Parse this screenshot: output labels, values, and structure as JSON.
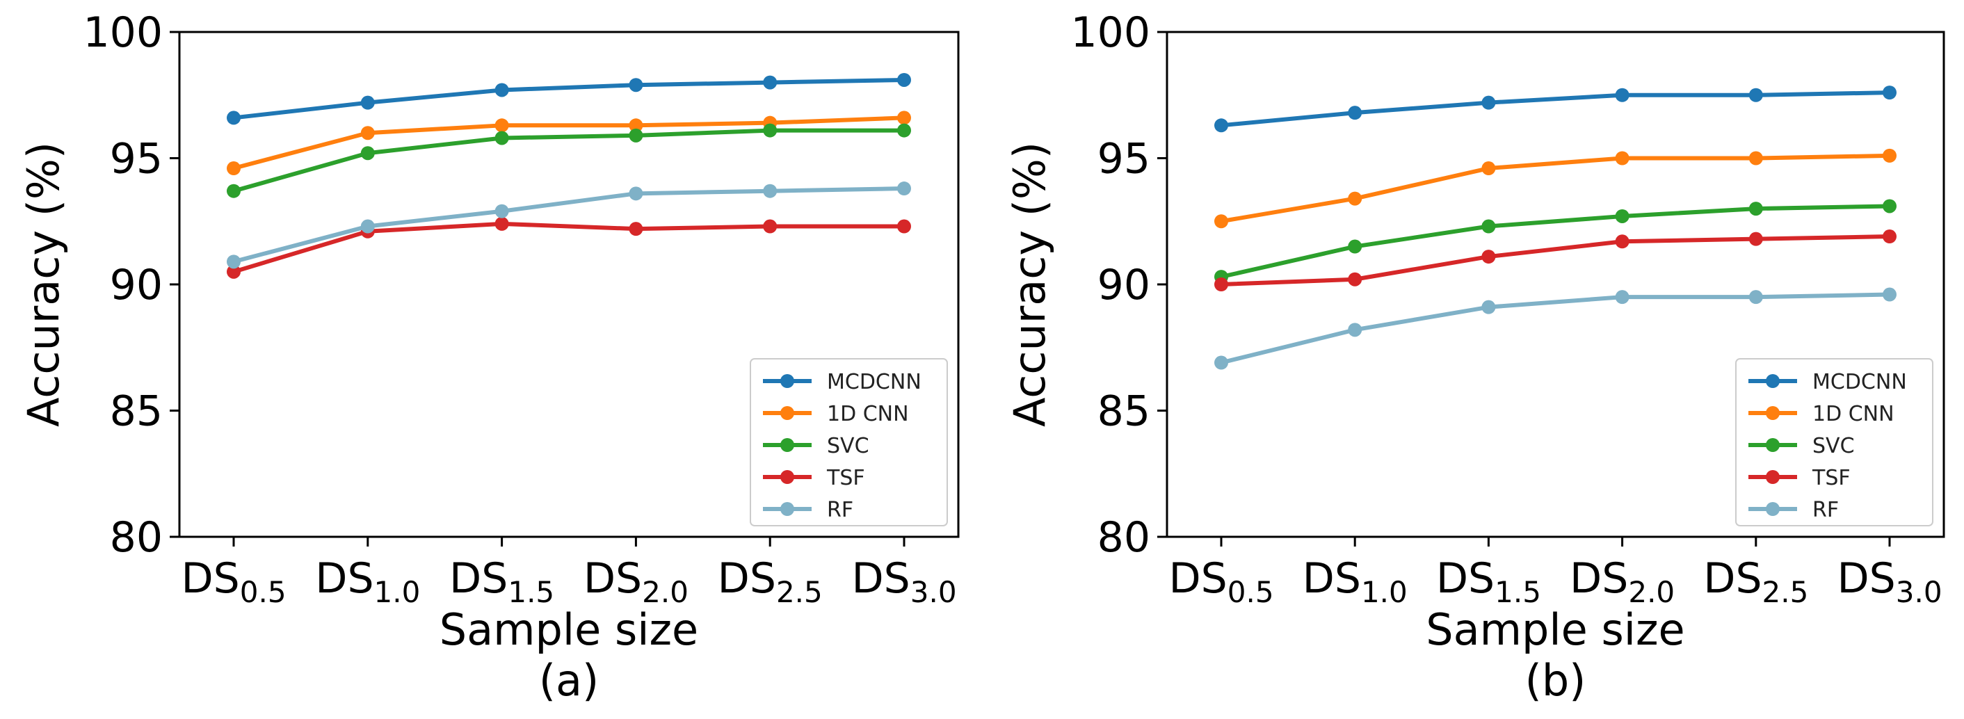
{
  "chart_data": [
    {
      "type": "line",
      "panel_label": "(a)",
      "xlabel": "Sample size",
      "ylabel": "Accuracy (%)",
      "ylim": [
        80,
        100
      ],
      "yticks": [
        "80",
        "85",
        "90",
        "95",
        "100"
      ],
      "categories": [
        {
          "base": "DS",
          "sub": "0.5"
        },
        {
          "base": "DS",
          "sub": "1.0"
        },
        {
          "base": "DS",
          "sub": "1.5"
        },
        {
          "base": "DS",
          "sub": "2.0"
        },
        {
          "base": "DS",
          "sub": "2.5"
        },
        {
          "base": "DS",
          "sub": "3.0"
        }
      ],
      "grid": false,
      "legend_position": "lower-right",
      "series": [
        {
          "name": "MCDCNN",
          "color": "#1f77b4",
          "values": [
            96.6,
            97.2,
            97.7,
            97.9,
            98.0,
            98.1
          ]
        },
        {
          "name": "1D CNN",
          "color": "#ff7f0e",
          "values": [
            94.6,
            96.0,
            96.3,
            96.3,
            96.4,
            96.6
          ]
        },
        {
          "name": "SVC",
          "color": "#2ca02c",
          "values": [
            93.7,
            95.2,
            95.8,
            95.9,
            96.1,
            96.1
          ]
        },
        {
          "name": "TSF",
          "color": "#d62728",
          "values": [
            90.5,
            92.1,
            92.4,
            92.2,
            92.3,
            92.3
          ]
        },
        {
          "name": "RF",
          "color": "#7fb1c7",
          "values": [
            90.9,
            92.3,
            92.9,
            93.6,
            93.7,
            93.8
          ]
        }
      ]
    },
    {
      "type": "line",
      "panel_label": "(b)",
      "xlabel": "Sample size",
      "ylabel": "Accuracy (%)",
      "ylim": [
        80,
        100
      ],
      "yticks": [
        "80",
        "85",
        "90",
        "95",
        "100"
      ],
      "categories": [
        {
          "base": "DS",
          "sub": "0.5"
        },
        {
          "base": "DS",
          "sub": "1.0"
        },
        {
          "base": "DS",
          "sub": "1.5"
        },
        {
          "base": "DS",
          "sub": "2.0"
        },
        {
          "base": "DS",
          "sub": "2.5"
        },
        {
          "base": "DS",
          "sub": "3.0"
        }
      ],
      "grid": false,
      "legend_position": "lower-right",
      "series": [
        {
          "name": "MCDCNN",
          "color": "#1f77b4",
          "values": [
            96.3,
            96.8,
            97.2,
            97.5,
            97.5,
            97.6
          ]
        },
        {
          "name": "1D CNN",
          "color": "#ff7f0e",
          "values": [
            92.5,
            93.4,
            94.6,
            95.0,
            95.0,
            95.1
          ]
        },
        {
          "name": "SVC",
          "color": "#2ca02c",
          "values": [
            90.3,
            91.5,
            92.3,
            92.7,
            93.0,
            93.1
          ]
        },
        {
          "name": "TSF",
          "color": "#d62728",
          "values": [
            90.0,
            90.2,
            91.1,
            91.7,
            91.8,
            91.9
          ]
        },
        {
          "name": "RF",
          "color": "#7fb1c7",
          "values": [
            86.9,
            88.2,
            89.1,
            89.5,
            89.5,
            89.6
          ]
        }
      ]
    }
  ]
}
